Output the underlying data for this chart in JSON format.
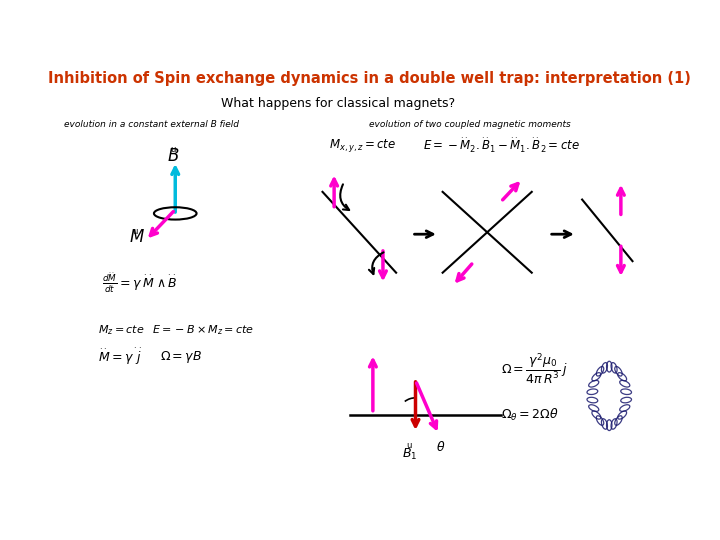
{
  "title": "Inhibition of Spin exchange dynamics in a double well trap: interpretation (1)",
  "subtitle": "What happens for classical magnets?",
  "title_color": "#CC3300",
  "subtitle_color": "#000000",
  "bg_color": "#FFFFFF",
  "left_label": "evolution in a constant external B field",
  "right_label": "evolution of two coupled magnetic moments",
  "magenta": "#FF00CC",
  "cyan": "#00BBDD",
  "dark_red": "#CC0000",
  "black": "#000000",
  "navy": "#1a1a6e",
  "eq1_left": "$M_{x,y,z} = cte$",
  "eq1_right": "$E = -\\dot{M}_2.\\dot{B}_1 - \\dot{M}_1.\\dot{B}_2 = cte$",
  "eq_dMdt": "$\\frac{d\\dot{M}}{dt} = \\gamma\\,\\dot{M}\\wedge\\dot{B}$",
  "eq_Mz": "$M_z = cte$",
  "eq_E": "$E = -B \\times M_z = cte$",
  "eq_Mgammaj": "$\\dot{M} = \\gamma\\,\\dot{j}$",
  "eq_Omega": "$\\Omega = \\gamma B$",
  "eq_Omega2": "$\\Omega = \\frac{\\gamma^2 \\mu_0}{4\\pi R^3}\\,j$",
  "eq_Omegatheta": "$\\Omega_\\theta = 2\\Omega\\theta$"
}
